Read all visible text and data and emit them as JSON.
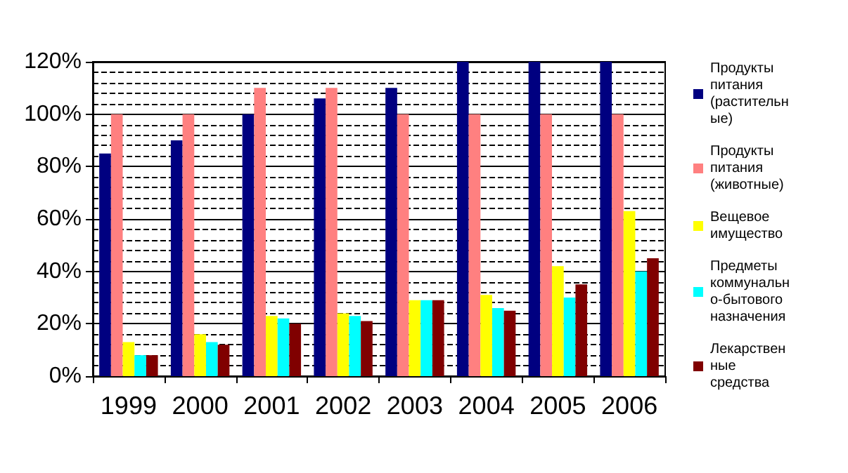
{
  "chart_data": {
    "type": "bar",
    "categories": [
      "1999",
      "2000",
      "2001",
      "2002",
      "2003",
      "2004",
      "2005",
      "2006"
    ],
    "series": [
      {
        "name": "Продукты питания (растительные)",
        "color": "#000080",
        "values": [
          85,
          90,
          100,
          106,
          110,
          120,
          120,
          120
        ]
      },
      {
        "name": "Продукты питания (животные)",
        "color": "#ff8080",
        "values": [
          100,
          100,
          110,
          110,
          100,
          100,
          100,
          100
        ]
      },
      {
        "name": "Вещевое имущество",
        "color": "#ffff00",
        "values": [
          13,
          16,
          23,
          24,
          29,
          31,
          42,
          63
        ]
      },
      {
        "name": "Предметы коммунально-бытового назначения",
        "color": "#00ffff",
        "values": [
          8,
          13,
          22,
          23,
          29,
          26,
          30,
          40
        ]
      },
      {
        "name": "Лекарственные средства",
        "color": "#800000",
        "values": [
          8,
          12,
          20,
          21,
          29,
          25,
          35,
          45
        ]
      }
    ],
    "ylim": [
      0,
      120
    ],
    "yticks": [
      {
        "value": 0,
        "label": "0%"
      },
      {
        "value": 20,
        "label": "20%"
      },
      {
        "value": 40,
        "label": "40%"
      },
      {
        "value": 60,
        "label": "60%"
      },
      {
        "value": 80,
        "label": "80%"
      },
      {
        "value": 100,
        "label": "100%"
      },
      {
        "value": 120,
        "label": "120%"
      }
    ],
    "grid": "y",
    "legend": "right"
  }
}
